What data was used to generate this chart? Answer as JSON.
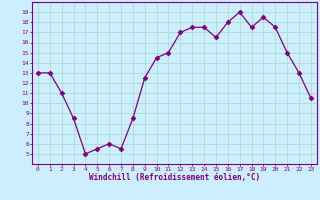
{
  "x": [
    0,
    1,
    2,
    3,
    4,
    5,
    6,
    7,
    8,
    9,
    10,
    11,
    12,
    13,
    14,
    15,
    16,
    17,
    18,
    19,
    20,
    21,
    22,
    23
  ],
  "y": [
    13,
    13,
    11,
    8.5,
    5,
    5.5,
    6,
    5.5,
    8.5,
    12.5,
    14.5,
    15,
    17,
    17.5,
    17.5,
    16.5,
    18,
    19,
    17.5,
    18.5,
    17.5,
    15,
    13,
    10.5
  ],
  "line_color": "#800080",
  "marker_color": "#800080",
  "bg_color": "#cceeff",
  "grid_color": "#aaddcc",
  "axis_color": "#800080",
  "tick_label_color": "#800080",
  "xlabel": "Windchill (Refroidissement éolien,°C)",
  "ylim": [
    4,
    20
  ],
  "xlim": [
    -0.5,
    23.5
  ],
  "yticks": [
    5,
    6,
    7,
    8,
    9,
    10,
    11,
    12,
    13,
    14,
    15,
    16,
    17,
    18,
    19
  ],
  "xticks": [
    0,
    1,
    2,
    3,
    4,
    5,
    6,
    7,
    8,
    9,
    10,
    11,
    12,
    13,
    14,
    15,
    16,
    17,
    18,
    19,
    20,
    21,
    22,
    23
  ]
}
